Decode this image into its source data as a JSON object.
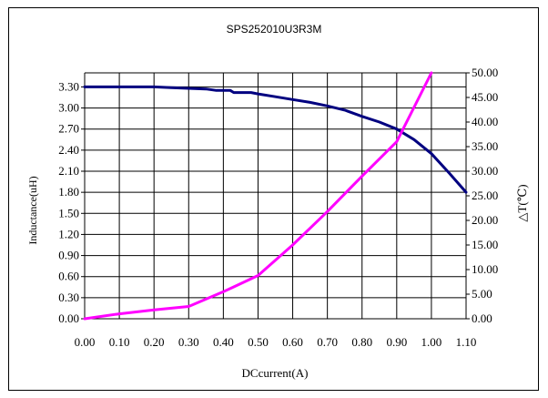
{
  "chart_data": {
    "type": "line",
    "title": "SPS252010U3R3M",
    "xlabel": "DCcurrent(A)",
    "ylabel_left": "Inductance(uH)",
    "ylabel_right": "△T(℃)",
    "xlim": [
      0,
      1.1
    ],
    "ylim_left": [
      0,
      3.5
    ],
    "ylim_right": [
      0,
      50
    ],
    "x_ticks": [
      "0.00",
      "0.10",
      "0.20",
      "0.30",
      "0.40",
      "0.50",
      "0.60",
      "0.70",
      "0.80",
      "0.90",
      "1.00",
      "1.10"
    ],
    "y_left_ticks": [
      "0.00",
      "0.30",
      "0.60",
      "0.90",
      "1.20",
      "1.50",
      "1.80",
      "2.10",
      "2.40",
      "2.70",
      "3.00",
      "3.30"
    ],
    "y_right_ticks": [
      "0.00",
      "5.00",
      "10.00",
      "15.00",
      "20.00",
      "25.00",
      "30.00",
      "35.00",
      "40.00",
      "45.00",
      "50.00"
    ],
    "grid": true,
    "legend": "none",
    "series": [
      {
        "axis": "left",
        "color": "#000080",
        "points": [
          [
            0.0,
            3.3
          ],
          [
            0.1,
            3.3
          ],
          [
            0.2,
            3.3
          ],
          [
            0.25,
            3.29
          ],
          [
            0.3,
            3.28
          ],
          [
            0.35,
            3.27
          ],
          [
            0.38,
            3.25
          ],
          [
            0.42,
            3.25
          ],
          [
            0.43,
            3.22
          ],
          [
            0.48,
            3.22
          ],
          [
            0.5,
            3.2
          ],
          [
            0.55,
            3.16
          ],
          [
            0.6,
            3.12
          ],
          [
            0.65,
            3.08
          ],
          [
            0.7,
            3.03
          ],
          [
            0.75,
            2.97
          ],
          [
            0.8,
            2.88
          ],
          [
            0.85,
            2.8
          ],
          [
            0.9,
            2.7
          ],
          [
            0.95,
            2.55
          ],
          [
            1.0,
            2.35
          ],
          [
            1.05,
            2.08
          ],
          [
            1.1,
            1.8
          ]
        ]
      },
      {
        "axis": "right",
        "color": "#ff00ff",
        "points": [
          [
            0.0,
            0.0
          ],
          [
            0.1,
            1.0
          ],
          [
            0.2,
            1.8
          ],
          [
            0.3,
            2.5
          ],
          [
            0.4,
            5.5
          ],
          [
            0.5,
            8.8
          ],
          [
            0.6,
            15.0
          ],
          [
            0.7,
            21.8
          ],
          [
            0.8,
            29.0
          ],
          [
            0.9,
            36.0
          ],
          [
            1.0,
            50.0
          ]
        ]
      }
    ]
  }
}
